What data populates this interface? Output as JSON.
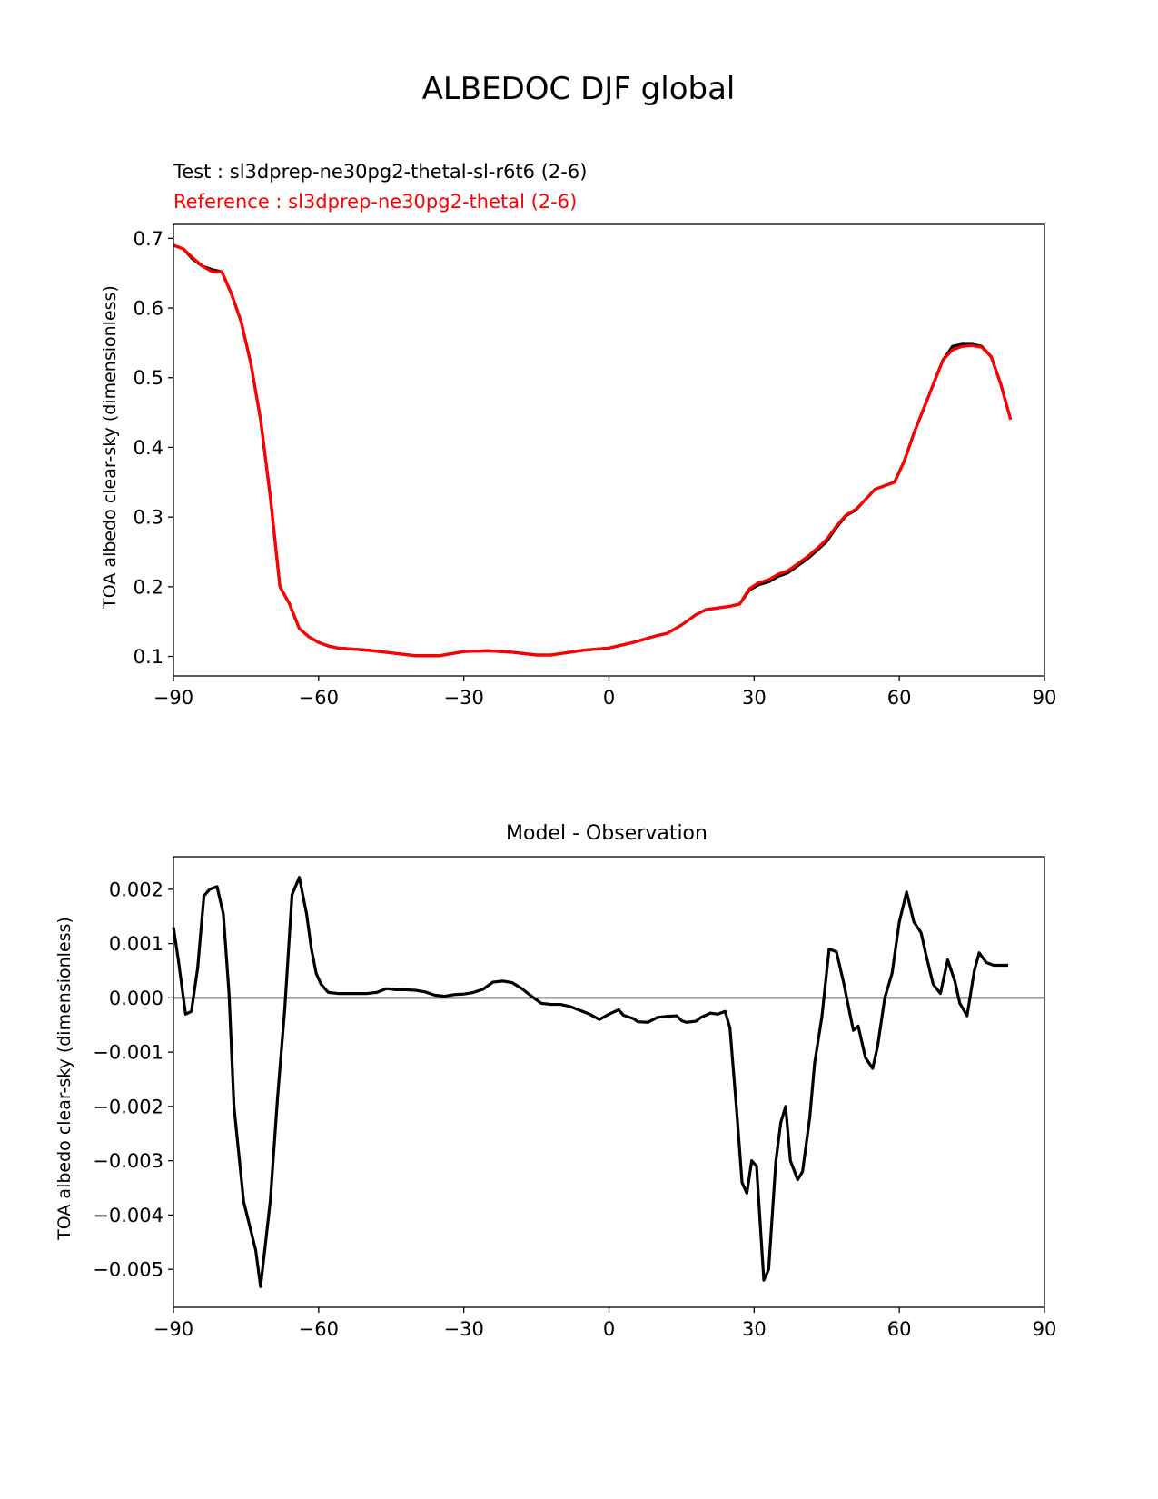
{
  "figure": {
    "title": "ALBEDOC DJF global"
  },
  "chart_data": [
    {
      "type": "line",
      "test_label": "Test : sl3dprep-ne30pg2-thetal-sl-r6t6 (2-6)",
      "reference_label": "Reference : sl3dprep-ne30pg2-thetal (2-6)",
      "xlabel": "",
      "ylabel": "TOA albedo clear-sky (dimensionless)",
      "xlim": [
        -90,
        90
      ],
      "ylim": [
        0.072,
        0.72
      ],
      "xticks": [
        -90,
        -60,
        -30,
        0,
        30,
        60,
        90
      ],
      "xtick_labels": [
        "−90",
        "−60",
        "−30",
        "0",
        "30",
        "60",
        "90"
      ],
      "yticks": [
        0.1,
        0.2,
        0.3,
        0.4,
        0.5,
        0.6,
        0.7
      ],
      "ytick_labels": [
        "0.1",
        "0.2",
        "0.3",
        "0.4",
        "0.5",
        "0.6",
        "0.7"
      ],
      "grid": false,
      "colors": {
        "test": "#000000",
        "reference": "#ff0000"
      },
      "x": [
        -90,
        -88,
        -86,
        -84,
        -82,
        -80,
        -78,
        -76,
        -74,
        -72,
        -70,
        -68,
        -66,
        -64,
        -62,
        -60,
        -58,
        -56,
        -54,
        -52,
        -50,
        -45,
        -40,
        -35,
        -30,
        -25,
        -20,
        -15,
        -12,
        -10,
        -5,
        0,
        5,
        10,
        12,
        15,
        18,
        20,
        25,
        27,
        29,
        31,
        33,
        35,
        37,
        39,
        41,
        43,
        45,
        47,
        49,
        51,
        53,
        55,
        57,
        59,
        61,
        63,
        65,
        67,
        69,
        71,
        73,
        75,
        77,
        79,
        81,
        83
      ],
      "series": [
        {
          "name": "Test",
          "values": [
            0.69,
            0.685,
            0.67,
            0.66,
            0.655,
            0.652,
            0.62,
            0.58,
            0.52,
            0.44,
            0.33,
            0.2,
            0.175,
            0.14,
            0.128,
            0.12,
            0.115,
            0.112,
            0.111,
            0.11,
            0.109,
            0.105,
            0.101,
            0.101,
            0.107,
            0.108,
            0.106,
            0.102,
            0.102,
            0.104,
            0.109,
            0.112,
            0.12,
            0.13,
            0.133,
            0.145,
            0.16,
            0.167,
            0.172,
            0.175,
            0.195,
            0.203,
            0.207,
            0.215,
            0.22,
            0.23,
            0.24,
            0.252,
            0.265,
            0.285,
            0.302,
            0.31,
            0.325,
            0.34,
            0.345,
            0.35,
            0.38,
            0.42,
            0.455,
            0.49,
            0.525,
            0.545,
            0.548,
            0.548,
            0.545,
            0.53,
            0.49,
            0.44
          ]
        },
        {
          "name": "Reference",
          "values": [
            0.69,
            0.685,
            0.672,
            0.66,
            0.652,
            0.652,
            0.62,
            0.58,
            0.52,
            0.44,
            0.33,
            0.2,
            0.175,
            0.14,
            0.128,
            0.12,
            0.115,
            0.112,
            0.111,
            0.11,
            0.109,
            0.105,
            0.101,
            0.101,
            0.107,
            0.108,
            0.106,
            0.102,
            0.102,
            0.104,
            0.109,
            0.112,
            0.12,
            0.13,
            0.133,
            0.145,
            0.16,
            0.167,
            0.172,
            0.175,
            0.197,
            0.206,
            0.21,
            0.218,
            0.223,
            0.233,
            0.243,
            0.255,
            0.268,
            0.287,
            0.303,
            0.311,
            0.325,
            0.34,
            0.345,
            0.35,
            0.38,
            0.42,
            0.455,
            0.49,
            0.525,
            0.54,
            0.545,
            0.546,
            0.544,
            0.53,
            0.49,
            0.44
          ]
        }
      ]
    },
    {
      "type": "line",
      "title": "Model - Observation",
      "xlabel": "",
      "ylabel": "TOA albedo clear-sky (dimensionless)",
      "xlim": [
        -90,
        90
      ],
      "ylim": [
        -0.0057,
        0.0026
      ],
      "xticks": [
        -90,
        -60,
        -30,
        0,
        30,
        60,
        90
      ],
      "xtick_labels": [
        "−90",
        "−60",
        "−30",
        "0",
        "30",
        "60",
        "90"
      ],
      "yticks": [
        -0.005,
        -0.004,
        -0.003,
        -0.002,
        -0.001,
        0.0,
        0.001,
        0.002
      ],
      "ytick_labels": [
        "−0.005",
        "−0.004",
        "−0.003",
        "−0.002",
        "−0.001",
        "0.000",
        "0.001",
        "0.002"
      ],
      "zero_line_color": "#808080",
      "grid": false,
      "x": [
        -90,
        -89,
        -87.5,
        -86.3,
        -85,
        -83.7,
        -82.5,
        -81,
        -79.7,
        -78.5,
        -77.5,
        -75.5,
        -73,
        -72,
        -70,
        -68.5,
        -67,
        -65.5,
        -64,
        -62.5,
        -61.5,
        -60.5,
        -59.5,
        -58,
        -56,
        -54,
        -52,
        -50,
        -48,
        -46,
        -44,
        -42,
        -40,
        -38,
        -36,
        -34,
        -32,
        -30,
        -28,
        -26,
        -24,
        -22,
        -20,
        -18,
        -16,
        -14,
        -12,
        -10,
        -8,
        -6,
        -4,
        -2,
        0,
        2,
        3,
        5,
        6,
        8,
        10,
        12,
        14,
        15,
        16,
        18,
        19,
        21,
        22.5,
        24,
        25,
        26.5,
        27.5,
        28.5,
        29.5,
        30.5,
        32,
        33,
        34.5,
        35.5,
        36.5,
        37.5,
        39,
        40,
        41.5,
        42.5,
        44,
        45.5,
        47,
        48.5,
        50.5,
        51.5,
        53,
        54.5,
        55.5,
        57,
        58.5,
        60,
        61.5,
        63,
        64.5,
        65.5,
        67,
        68.5,
        70,
        71.5,
        72.5,
        74,
        75.5,
        76.5,
        78,
        79.5,
        81,
        82.5
      ],
      "series": [
        {
          "name": "",
          "values": [
            0.0013,
            0.0007,
            -0.0003,
            -0.00025,
            0.00055,
            0.00188,
            0.002,
            0.00205,
            0.00155,
            5e-05,
            -0.002,
            -0.00375,
            -0.00465,
            -0.00532,
            -0.00375,
            -0.00185,
            -0.0002,
            0.0019,
            0.00222,
            0.00155,
            0.0009,
            0.00045,
            0.00025,
            0.0001,
            8e-05,
            8e-05,
            8e-05,
            8e-05,
            0.0001,
            0.00017,
            0.00015,
            0.00015,
            0.00014,
            0.00011,
            5e-05,
            3e-05,
            6e-05,
            7e-05,
            0.0001,
            0.00016,
            0.00029,
            0.00031,
            0.00028,
            0.00017,
            3e-05,
            -0.0001,
            -0.00012,
            -0.00012,
            -0.00016,
            -0.00023,
            -0.0003,
            -0.0004,
            -0.0003,
            -0.00022,
            -0.00032,
            -0.00038,
            -0.00044,
            -0.00045,
            -0.00036,
            -0.00034,
            -0.00033,
            -0.00042,
            -0.00045,
            -0.00043,
            -0.00036,
            -0.00028,
            -0.0003,
            -0.00025,
            -0.00055,
            -0.0022,
            -0.0034,
            -0.0036,
            -0.003,
            -0.0031,
            -0.0052,
            -0.005,
            -0.003,
            -0.0023,
            -0.002,
            -0.003,
            -0.00335,
            -0.0032,
            -0.0022,
            -0.0012,
            -0.00035,
            0.0009,
            0.00085,
            0.00028,
            -0.0006,
            -0.00052,
            -0.0011,
            -0.0013,
            -0.0009,
            0.0,
            0.00045,
            0.0014,
            0.00195,
            0.0014,
            0.0012,
            0.0008,
            0.00025,
            8e-05,
            0.0007,
            0.0003,
            -0.0001,
            -0.00033,
            0.0005,
            0.00083,
            0.00065,
            0.0006,
            0.0006,
            0.0006
          ]
        }
      ]
    }
  ]
}
